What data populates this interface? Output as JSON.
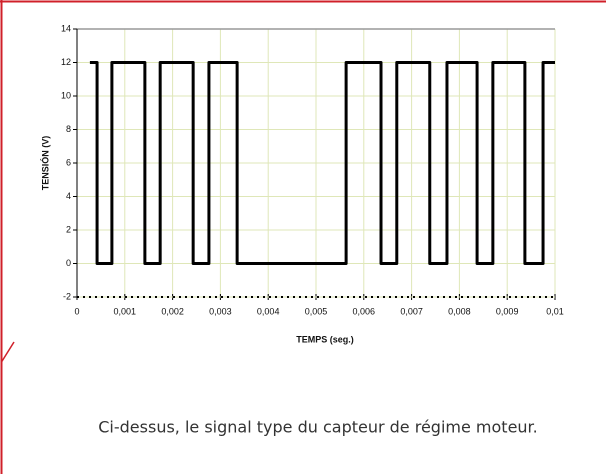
{
  "chart_data": {
    "type": "line",
    "xlabel": "TEMPS (seg.)",
    "ylabel": "TENSIÓN (V)",
    "x": [
      0.00027,
      0.00042,
      0.00042,
      0.00073,
      0.00073,
      0.00142,
      0.00142,
      0.00174,
      0.00174,
      0.00243,
      0.00243,
      0.00276,
      0.00276,
      0.00335,
      0.00335,
      0.00563,
      0.00563,
      0.00636,
      0.00636,
      0.00669,
      0.00669,
      0.00738,
      0.00738,
      0.00774,
      0.00774,
      0.00837,
      0.00837,
      0.0087,
      0.0087,
      0.00937,
      0.00937,
      0.00975,
      0.00975,
      0.01
    ],
    "values": [
      12,
      12,
      0,
      0,
      12,
      12,
      0,
      0,
      12,
      12,
      0,
      0,
      12,
      12,
      0,
      0,
      12,
      12,
      0,
      0,
      12,
      12,
      0,
      0,
      12,
      12,
      0,
      0,
      12,
      12,
      0,
      0,
      12,
      12
    ],
    "color": "#000000",
    "xlim": [
      0,
      0.01
    ],
    "xticks": [
      0,
      {
        "value": 0.001,
        "label": "0,001"
      },
      {
        "value": 0.002,
        "label": "0,002"
      },
      {
        "value": 0.003,
        "label": "0,003"
      },
      {
        "value": 0.004,
        "label": "0,004"
      },
      {
        "value": 0.005,
        "label": "0,005"
      },
      {
        "value": 0.006,
        "label": "0,006"
      },
      {
        "value": 0.007,
        "label": "0,007"
      },
      {
        "value": 0.008,
        "label": "0,008"
      },
      {
        "value": 0.009,
        "label": "0,009"
      },
      {
        "value": 0.01,
        "label": "0,01"
      }
    ],
    "ylim": [
      -2,
      14
    ],
    "yticks": [
      -2,
      0,
      2,
      4,
      6,
      8,
      10,
      12,
      14
    ],
    "grid": true
  },
  "caption": "Ci-dessus, le signal type du capteur de régime moteur."
}
